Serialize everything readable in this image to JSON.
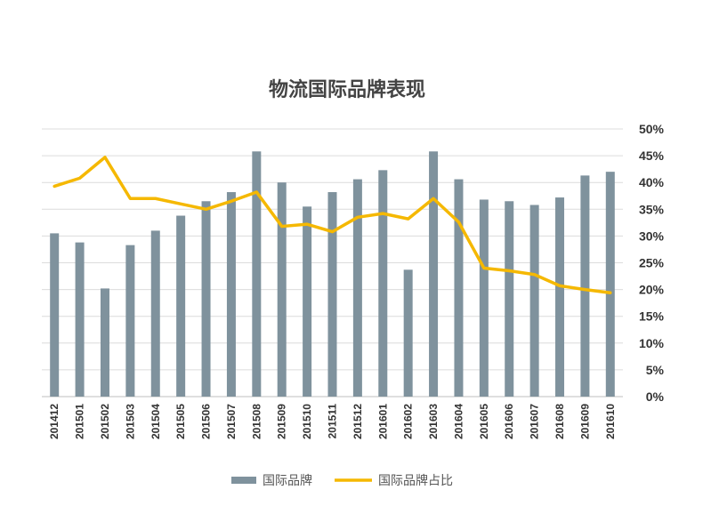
{
  "chart_data": {
    "type": "bar",
    "title": "物流国际品牌表现",
    "categories": [
      "201412",
      "201501",
      "201502",
      "201503",
      "201504",
      "201505",
      "201506",
      "201507",
      "201508",
      "201509",
      "201510",
      "201511",
      "201512",
      "201601",
      "201602",
      "201603",
      "201604",
      "201605",
      "201606",
      "201607",
      "201608",
      "201609",
      "201610"
    ],
    "series": [
      {
        "name": "国际品牌",
        "type": "bar",
        "color": "#7f929d",
        "values": [
          30.5,
          28.8,
          20.2,
          28.3,
          31.0,
          33.8,
          36.5,
          38.2,
          45.8,
          40.0,
          35.5,
          38.2,
          40.6,
          42.3,
          23.7,
          45.8,
          40.6,
          36.8,
          36.5,
          35.8,
          37.2,
          41.3,
          42.0
        ]
      },
      {
        "name": "国际品牌占比",
        "type": "line",
        "color": "#f5b800",
        "values": [
          39.3,
          40.8,
          44.7,
          37.0,
          37.0,
          36.0,
          35.0,
          36.5,
          38.2,
          31.8,
          32.2,
          30.8,
          33.5,
          34.2,
          33.2,
          37.0,
          32.6,
          24.0,
          23.5,
          22.8,
          20.7,
          20.0,
          19.4
        ]
      }
    ],
    "yticks": [
      "0%",
      "5%",
      "10%",
      "15%",
      "20%",
      "25%",
      "30%",
      "35%",
      "40%",
      "45%",
      "50%"
    ],
    "ylim": [
      0,
      50
    ],
    "xlabel": "",
    "ylabel": "",
    "grid": true,
    "legend_position": "bottom"
  }
}
